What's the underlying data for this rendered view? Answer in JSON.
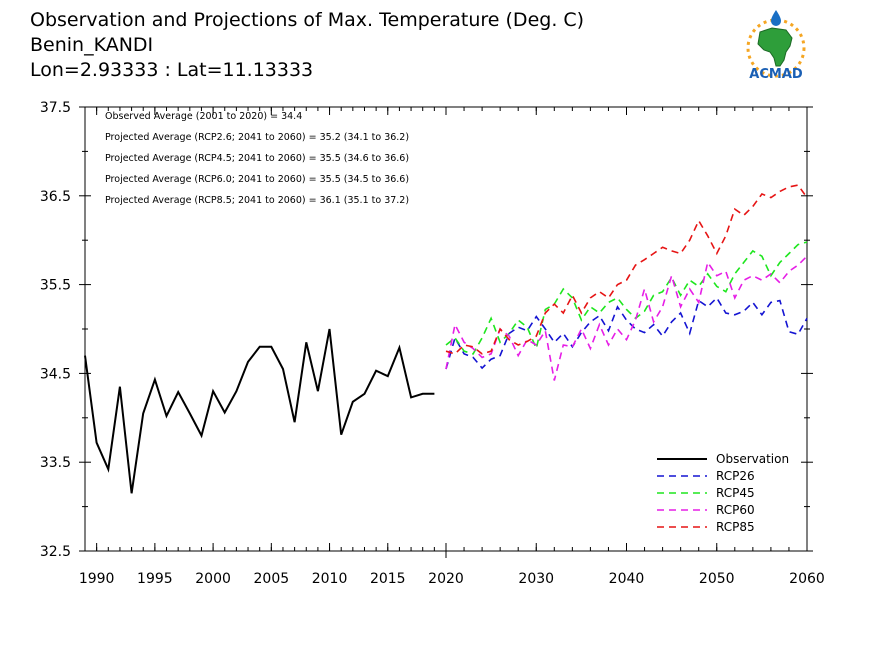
{
  "header": {
    "title_line1": "Observation and Projections of Max. Temperature (Deg. C)",
    "title_line2": "Benin_KANDI",
    "title_line3": "Lon=2.93333 : Lat=11.13333"
  },
  "logo": {
    "text": "ACMAD"
  },
  "colors": {
    "observation": "#000000",
    "rcp26": "#1414d2",
    "rcp45": "#1ee61e",
    "rcp60": "#e61ee6",
    "rcp85": "#e61414"
  },
  "chart_data": {
    "type": "line",
    "ylim": [
      32.5,
      37.5
    ],
    "yticks": [
      32.5,
      33.5,
      34.5,
      35.5,
      36.5,
      37.5
    ],
    "ytick_labels": [
      "32.5",
      "33.5",
      "34.5",
      "35.5",
      "36.5",
      "37.5"
    ],
    "xticks_left": [
      1990,
      1995,
      2000,
      2005,
      2010,
      2015,
      2020
    ],
    "xtick_labels_left": [
      "1990",
      "1995",
      "2000",
      "2005",
      "2010",
      "2015",
      "2020"
    ],
    "xticks_right": [
      2030,
      2040,
      2050,
      2060
    ],
    "xtick_labels_right": [
      "2030",
      "2040",
      "2050",
      "2060"
    ],
    "annotations": [
      "Observed Average (2001 to 2020) = 34.4",
      "Projected Average (RCP2.6; 2041 to 2060) = 35.2 (34.1 to 36.2)",
      "Projected Average (RCP4.5; 2041 to 2060) = 35.5 (34.6 to 36.6)",
      "Projected Average (RCP6.0; 2041 to 2060) = 35.5 (34.5 to 36.6)",
      "Projected Average (RCP8.5; 2041 to 2060) = 36.1 (35.1 to 37.2)"
    ],
    "legend": {
      "placement": "bottom-right",
      "entries": [
        "Observation",
        "RCP26",
        "RCP45",
        "RCP60",
        "RCP85"
      ]
    },
    "observation": {
      "name": "Observation",
      "x": [
        1989,
        1990,
        1991,
        1992,
        1993,
        1994,
        1995,
        1996,
        1997,
        1998,
        1999,
        2000,
        2001,
        2002,
        2003,
        2004,
        2005,
        2006,
        2007,
        2008,
        2009,
        2010,
        2011,
        2012,
        2013,
        2014,
        2015,
        2016,
        2017,
        2018,
        2019
      ],
      "y": [
        34.7,
        33.72,
        33.42,
        34.35,
        33.15,
        34.05,
        34.43,
        34.02,
        34.29,
        34.05,
        33.8,
        34.3,
        34.06,
        34.3,
        34.63,
        34.8,
        34.8,
        34.55,
        33.95,
        34.85,
        34.3,
        35.0,
        33.81,
        34.18,
        34.27,
        34.53,
        34.47,
        34.79,
        34.23,
        34.27,
        34.27
      ]
    },
    "projections": [
      {
        "name": "RCP26",
        "x": [
          2020,
          2021,
          2022,
          2023,
          2024,
          2025,
          2026,
          2027,
          2028,
          2029,
          2030,
          2031,
          2032,
          2033,
          2034,
          2035,
          2036,
          2037,
          2038,
          2039,
          2040,
          2041,
          2042,
          2043,
          2044,
          2045,
          2046,
          2047,
          2048,
          2049,
          2050,
          2051,
          2052,
          2053,
          2054,
          2055,
          2056,
          2057,
          2058,
          2059,
          2060
        ],
        "y": [
          34.55,
          34.9,
          34.72,
          34.68,
          34.56,
          34.66,
          34.7,
          34.95,
          35.02,
          34.98,
          35.14,
          35.0,
          34.85,
          34.95,
          34.8,
          34.96,
          35.08,
          35.15,
          34.98,
          35.25,
          35.1,
          35.0,
          34.96,
          35.05,
          34.92,
          35.08,
          35.18,
          34.95,
          35.32,
          35.25,
          35.35,
          35.18,
          35.16,
          35.2,
          35.3,
          35.16,
          35.3,
          35.32,
          34.97,
          34.94,
          35.12
        ]
      },
      {
        "name": "RCP45",
        "x": [
          2020,
          2021,
          2022,
          2023,
          2024,
          2025,
          2026,
          2027,
          2028,
          2029,
          2030,
          2031,
          2032,
          2033,
          2034,
          2035,
          2036,
          2037,
          2038,
          2039,
          2040,
          2041,
          2042,
          2043,
          2044,
          2045,
          2046,
          2047,
          2048,
          2049,
          2050,
          2051,
          2052,
          2053,
          2054,
          2055,
          2056,
          2057,
          2058,
          2059,
          2060
        ],
        "y": [
          34.82,
          34.9,
          34.75,
          34.72,
          34.9,
          35.12,
          34.85,
          34.95,
          35.1,
          35.02,
          34.78,
          35.22,
          35.28,
          35.45,
          35.35,
          35.1,
          35.25,
          35.18,
          35.3,
          35.35,
          35.22,
          35.12,
          35.2,
          35.38,
          35.42,
          35.58,
          35.38,
          35.55,
          35.48,
          35.62,
          35.48,
          35.42,
          35.62,
          35.75,
          35.88,
          35.82,
          35.6,
          35.75,
          35.85,
          35.95,
          35.98
        ]
      },
      {
        "name": "RCP60",
        "x": [
          2020,
          2021,
          2022,
          2023,
          2024,
          2025,
          2026,
          2027,
          2028,
          2029,
          2030,
          2031,
          2032,
          2033,
          2034,
          2035,
          2036,
          2037,
          2038,
          2039,
          2040,
          2041,
          2042,
          2043,
          2044,
          2045,
          2046,
          2047,
          2048,
          2049,
          2050,
          2051,
          2052,
          2053,
          2054,
          2055,
          2056,
          2057,
          2058,
          2059,
          2060
        ],
        "y": [
          34.55,
          35.05,
          34.85,
          34.78,
          34.68,
          34.72,
          35.0,
          34.92,
          34.7,
          34.88,
          34.82,
          34.98,
          34.42,
          34.82,
          34.8,
          35.0,
          34.78,
          35.05,
          34.82,
          35.0,
          34.88,
          35.1,
          35.45,
          35.08,
          35.25,
          35.6,
          35.25,
          35.45,
          35.3,
          35.75,
          35.6,
          35.65,
          35.35,
          35.55,
          35.6,
          35.55,
          35.62,
          35.52,
          35.65,
          35.72,
          35.82
        ]
      },
      {
        "name": "RCP85",
        "x": [
          2020,
          2021,
          2022,
          2023,
          2024,
          2025,
          2026,
          2027,
          2028,
          2029,
          2030,
          2031,
          2032,
          2033,
          2034,
          2035,
          2036,
          2037,
          2038,
          2039,
          2040,
          2041,
          2042,
          2043,
          2044,
          2045,
          2046,
          2047,
          2048,
          2049,
          2050,
          2051,
          2052,
          2053,
          2054,
          2055,
          2056,
          2057,
          2058,
          2059,
          2060
        ],
        "y": [
          34.75,
          34.72,
          34.82,
          34.8,
          34.72,
          34.75,
          35.0,
          34.88,
          34.82,
          34.86,
          34.92,
          35.18,
          35.28,
          35.18,
          35.38,
          35.18,
          35.35,
          35.42,
          35.35,
          35.5,
          35.55,
          35.72,
          35.78,
          35.85,
          35.92,
          35.88,
          35.85,
          36.0,
          36.22,
          36.05,
          35.85,
          36.05,
          36.35,
          36.28,
          36.38,
          36.52,
          36.48,
          36.55,
          36.6,
          36.62,
          36.48
        ]
      }
    ]
  }
}
